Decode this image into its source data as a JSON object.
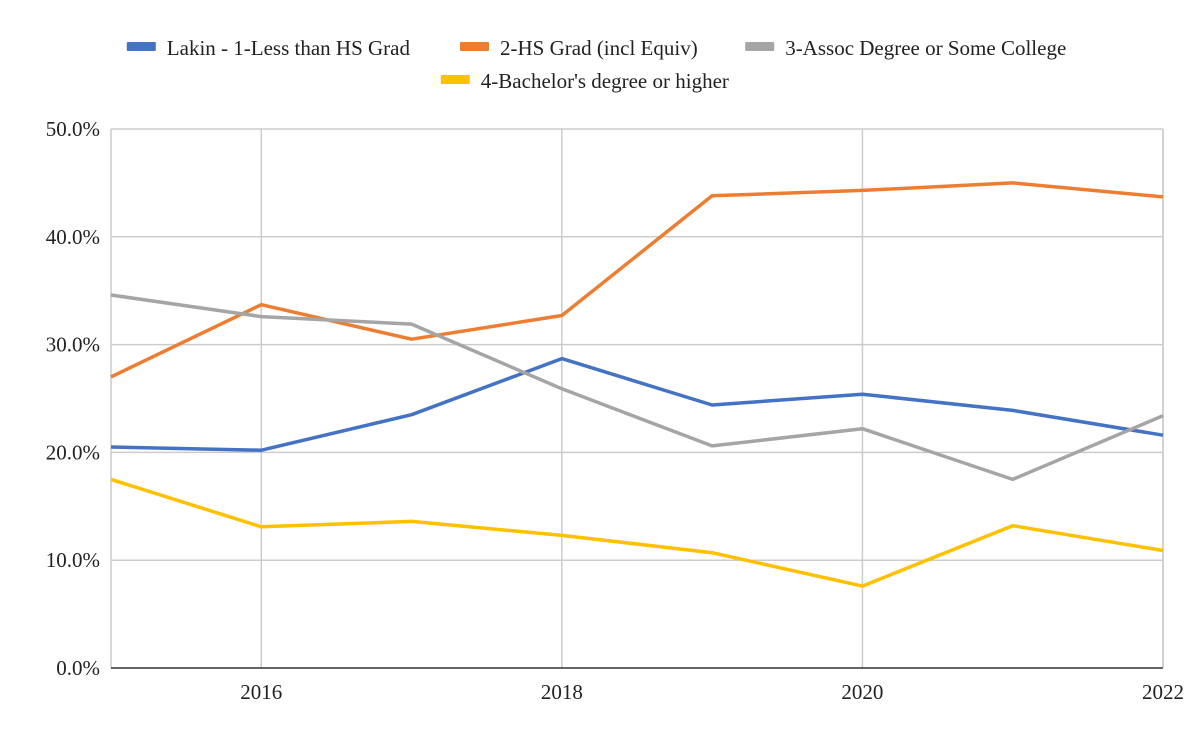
{
  "chart_data": {
    "type": "line",
    "title": "",
    "xlabel": "",
    "ylabel": "",
    "x": [
      2015,
      2016,
      2017,
      2018,
      2019,
      2020,
      2021,
      2022
    ],
    "xlim": [
      2015,
      2022
    ],
    "ylim": [
      0,
      50
    ],
    "x_ticks": [
      2016,
      2018,
      2020,
      2022
    ],
    "x_tick_labels": [
      "2016",
      "2018",
      "2020",
      "2022"
    ],
    "y_ticks": [
      0,
      10,
      20,
      30,
      40,
      50
    ],
    "y_tick_labels": [
      "0.0%",
      "10.0%",
      "20.0%",
      "30.0%",
      "40.0%",
      "50.0%"
    ],
    "grid": true,
    "legend_position": "top",
    "series": [
      {
        "name": "Lakin - 1-Less than HS Grad",
        "color": "#4472C4",
        "values": [
          20.5,
          20.2,
          23.5,
          28.7,
          24.4,
          25.4,
          23.9,
          21.6
        ]
      },
      {
        "name": "2-HS Grad (incl Equiv)",
        "color": "#ED7D31",
        "values": [
          27.0,
          33.7,
          30.5,
          32.7,
          43.8,
          44.3,
          45.0,
          43.7
        ]
      },
      {
        "name": "3-Assoc Degree or Some College",
        "color": "#A5A5A5",
        "values": [
          34.6,
          32.6,
          31.9,
          25.9,
          20.6,
          22.2,
          17.5,
          23.4
        ]
      },
      {
        "name": "4-Bachelor's degree or higher",
        "color": "#FFC000",
        "values": [
          17.5,
          13.1,
          13.6,
          12.3,
          10.7,
          7.6,
          13.2,
          10.9
        ]
      }
    ]
  }
}
